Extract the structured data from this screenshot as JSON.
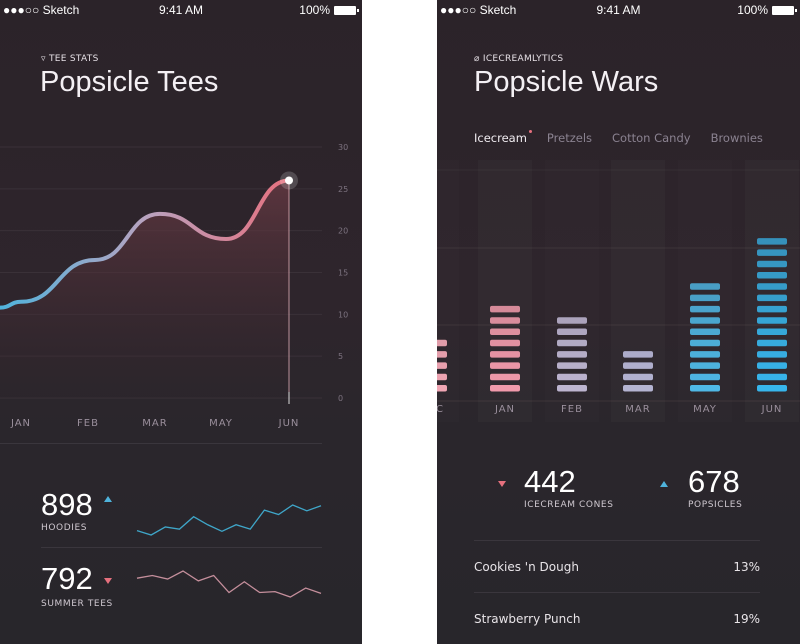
{
  "status_bar": {
    "carrier": "●●●○○ Sketch",
    "time": "9:41 AM",
    "battery": "100%"
  },
  "left": {
    "kicker": "TEE STATS",
    "kicker_icon": "tshirt-icon",
    "title": "Popsicle Tees",
    "stats": [
      {
        "value": "898",
        "label": "HOODIES",
        "trend": "up",
        "color": "#3fa6c9"
      },
      {
        "value": "792",
        "label": "SUMMER TEES",
        "trend": "down",
        "color": "#c58f9c"
      }
    ]
  },
  "right": {
    "kicker": "ICECREAMLYTICS",
    "kicker_icon": "leaf-icon",
    "title": "Popsicle Wars",
    "tabs": [
      "Icecream",
      "Pretzels",
      "Cotton Candy",
      "Brownies"
    ],
    "active_tab": "Icecream",
    "stats": [
      {
        "value": "442",
        "label": "ICECREAM CONES",
        "trend": "down"
      },
      {
        "value": "678",
        "label": "POPSICLES",
        "trend": "up"
      }
    ],
    "list": [
      {
        "name": "Cookies 'n Dough",
        "pct": "13%"
      },
      {
        "name": "Strawberry Punch",
        "pct": "19%"
      }
    ]
  },
  "chart_data": [
    {
      "type": "area",
      "categories": [
        "JAN",
        "FEB",
        "MAR",
        "MAY",
        "JUN"
      ],
      "values": [
        11.5,
        16.5,
        22,
        19,
        26
      ],
      "yticks": [
        "0",
        "5",
        "10",
        "15",
        "20",
        "25",
        "30"
      ],
      "ylim": [
        0,
        30
      ],
      "grid": true,
      "colors": {
        "start": "#4fb3dc",
        "mid": "#b8a3c0",
        "end": "#e6707e"
      }
    },
    {
      "type": "bar",
      "categories": [
        "DEC",
        "JAN",
        "FEB",
        "MAR",
        "MAY",
        "JUN"
      ],
      "values": [
        5,
        8,
        7,
        4,
        10,
        14
      ],
      "colors": [
        "#f0a6b4",
        "#f19aab",
        "#bdb5d0",
        "#b4b4d2",
        "#4fb8e6",
        "#37b6ec"
      ]
    },
    {
      "type": "line",
      "name": "HOODIES",
      "values": [
        10,
        4,
        15,
        12,
        29,
        18,
        9,
        18,
        12,
        38,
        32,
        45,
        37,
        44
      ],
      "color": "#3fa6c9"
    },
    {
      "type": "line",
      "name": "SUMMER TEES",
      "values": [
        41,
        44,
        40,
        49,
        38,
        44,
        25,
        37,
        25,
        26,
        20,
        30,
        24
      ],
      "color": "#c58f9c"
    }
  ]
}
